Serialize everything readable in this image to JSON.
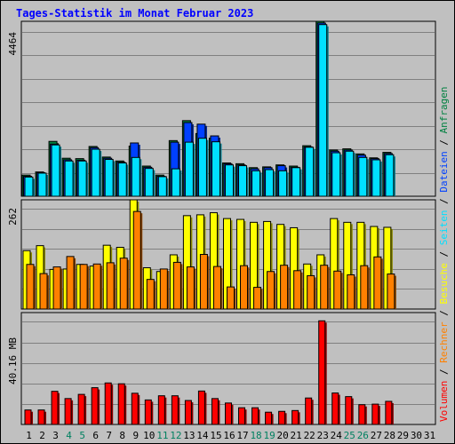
{
  "title": "Tages-Statistik im Monat Februar 2023",
  "colors": {
    "anfragen": "#008040",
    "dateien": "#0040FF",
    "seiten": "#00E0FF",
    "besuche": "#FFFF00",
    "rechner": "#FF8000",
    "volumen": "#FF0000",
    "weekday": "#000000",
    "weekend": "#008060",
    "background": "#C0C0C0"
  },
  "legend_right": [
    {
      "text": "Volumen",
      "color": "#FF0000"
    },
    {
      "text": " / ",
      "color": "#000000"
    },
    {
      "text": "Rechner",
      "color": "#FF8000"
    },
    {
      "text": " / ",
      "color": "#000000"
    },
    {
      "text": "Besuche",
      "color": "#FFFF00"
    },
    {
      "text": " / ",
      "color": "#000000"
    },
    {
      "text": "Seiten",
      "color": "#00E0FF"
    },
    {
      "text": " / ",
      "color": "#000000"
    },
    {
      "text": "Dateien",
      "color": "#0040FF"
    },
    {
      "text": " / ",
      "color": "#000000"
    },
    {
      "text": "Anfragen",
      "color": "#008040"
    }
  ],
  "chart_data": [
    {
      "type": "bar",
      "panel": "top",
      "ylabel": "4464",
      "ylim": [
        0,
        4464
      ],
      "categories": [
        "1",
        "2",
        "3",
        "4",
        "5",
        "6",
        "7",
        "8",
        "9",
        "10",
        "11",
        "12",
        "13",
        "14",
        "15",
        "16",
        "17",
        "18",
        "19",
        "20",
        "21",
        "22",
        "23",
        "24",
        "25",
        "26",
        "27",
        "28",
        "29",
        "30",
        "31"
      ],
      "weekend_days": [
        "4",
        "5",
        "11",
        "12",
        "18",
        "19",
        "25",
        "26"
      ],
      "series": [
        {
          "name": "Anfragen",
          "values": [
            540,
            620,
            1400,
            970,
            960,
            1270,
            1000,
            900,
            1280,
            770,
            540,
            1420,
            1930,
            1600,
            1480,
            850,
            830,
            730,
            750,
            800,
            770,
            1290,
            4464,
            1180,
            1210,
            1080,
            980,
            1120,
            0,
            0,
            0
          ]
        },
        {
          "name": "Dateien",
          "values": [
            510,
            600,
            1330,
            930,
            920,
            1240,
            970,
            870,
            1360,
            740,
            510,
            1380,
            1880,
            1840,
            1540,
            830,
            800,
            700,
            730,
            780,
            740,
            1260,
            4420,
            1150,
            1180,
            1050,
            960,
            1090,
            0,
            0,
            0
          ]
        },
        {
          "name": "Seiten",
          "values": [
            490,
            590,
            1310,
            900,
            900,
            1200,
            940,
            850,
            990,
            710,
            500,
            700,
            1380,
            1480,
            1390,
            800,
            780,
            650,
            680,
            650,
            730,
            1250,
            4380,
            1110,
            1150,
            990,
            930,
            1060,
            0,
            0,
            0
          ]
        }
      ]
    },
    {
      "type": "bar",
      "panel": "middle",
      "ylabel": "262",
      "ylim": [
        0,
        262
      ],
      "categories": [
        "1",
        "2",
        "3",
        "4",
        "5",
        "6",
        "7",
        "8",
        "9",
        "10",
        "11",
        "12",
        "13",
        "14",
        "15",
        "16",
        "17",
        "18",
        "19",
        "20",
        "21",
        "22",
        "23",
        "24",
        "25",
        "26",
        "27",
        "28",
        "29",
        "30",
        "31"
      ],
      "series": [
        {
          "name": "Besuche",
          "values": [
            140,
            152,
            95,
            96,
            107,
            103,
            153,
            148,
            262,
            99,
            90,
            130,
            224,
            226,
            231,
            217,
            215,
            208,
            210,
            203,
            195,
            108,
            130,
            217,
            208,
            208,
            198,
            196,
            0,
            0,
            0
          ]
        },
        {
          "name": "Rechner",
          "values": [
            107,
            85,
            101,
            126,
            107,
            108,
            111,
            122,
            234,
            71,
            96,
            112,
            101,
            131,
            102,
            53,
            104,
            52,
            90,
            105,
            92,
            80,
            105,
            91,
            82,
            104,
            125,
            84,
            0,
            0,
            0
          ]
        }
      ]
    },
    {
      "type": "bar",
      "panel": "bottom",
      "ylabel": "40.16 MB",
      "ylim": [
        0,
        40.16
      ],
      "categories": [
        "1",
        "2",
        "3",
        "4",
        "5",
        "6",
        "7",
        "8",
        "9",
        "10",
        "11",
        "12",
        "13",
        "14",
        "15",
        "16",
        "17",
        "18",
        "19",
        "20",
        "21",
        "22",
        "23",
        "24",
        "25",
        "26",
        "27",
        "28",
        "29",
        "30",
        "31"
      ],
      "series": [
        {
          "name": "Volumen",
          "values": [
            5.2,
            5.2,
            11.9,
            9.3,
            10.8,
            13.2,
            14.9,
            14.6,
            11.2,
            8.8,
            10.3,
            10.3,
            8.6,
            12.0,
            9.3,
            7.7,
            6.0,
            6.0,
            4.4,
            4.7,
            5.0,
            9.5,
            37.2,
            11.3,
            10.0,
            7.1,
            7.3,
            8.3,
            0,
            0,
            0
          ]
        }
      ]
    }
  ]
}
